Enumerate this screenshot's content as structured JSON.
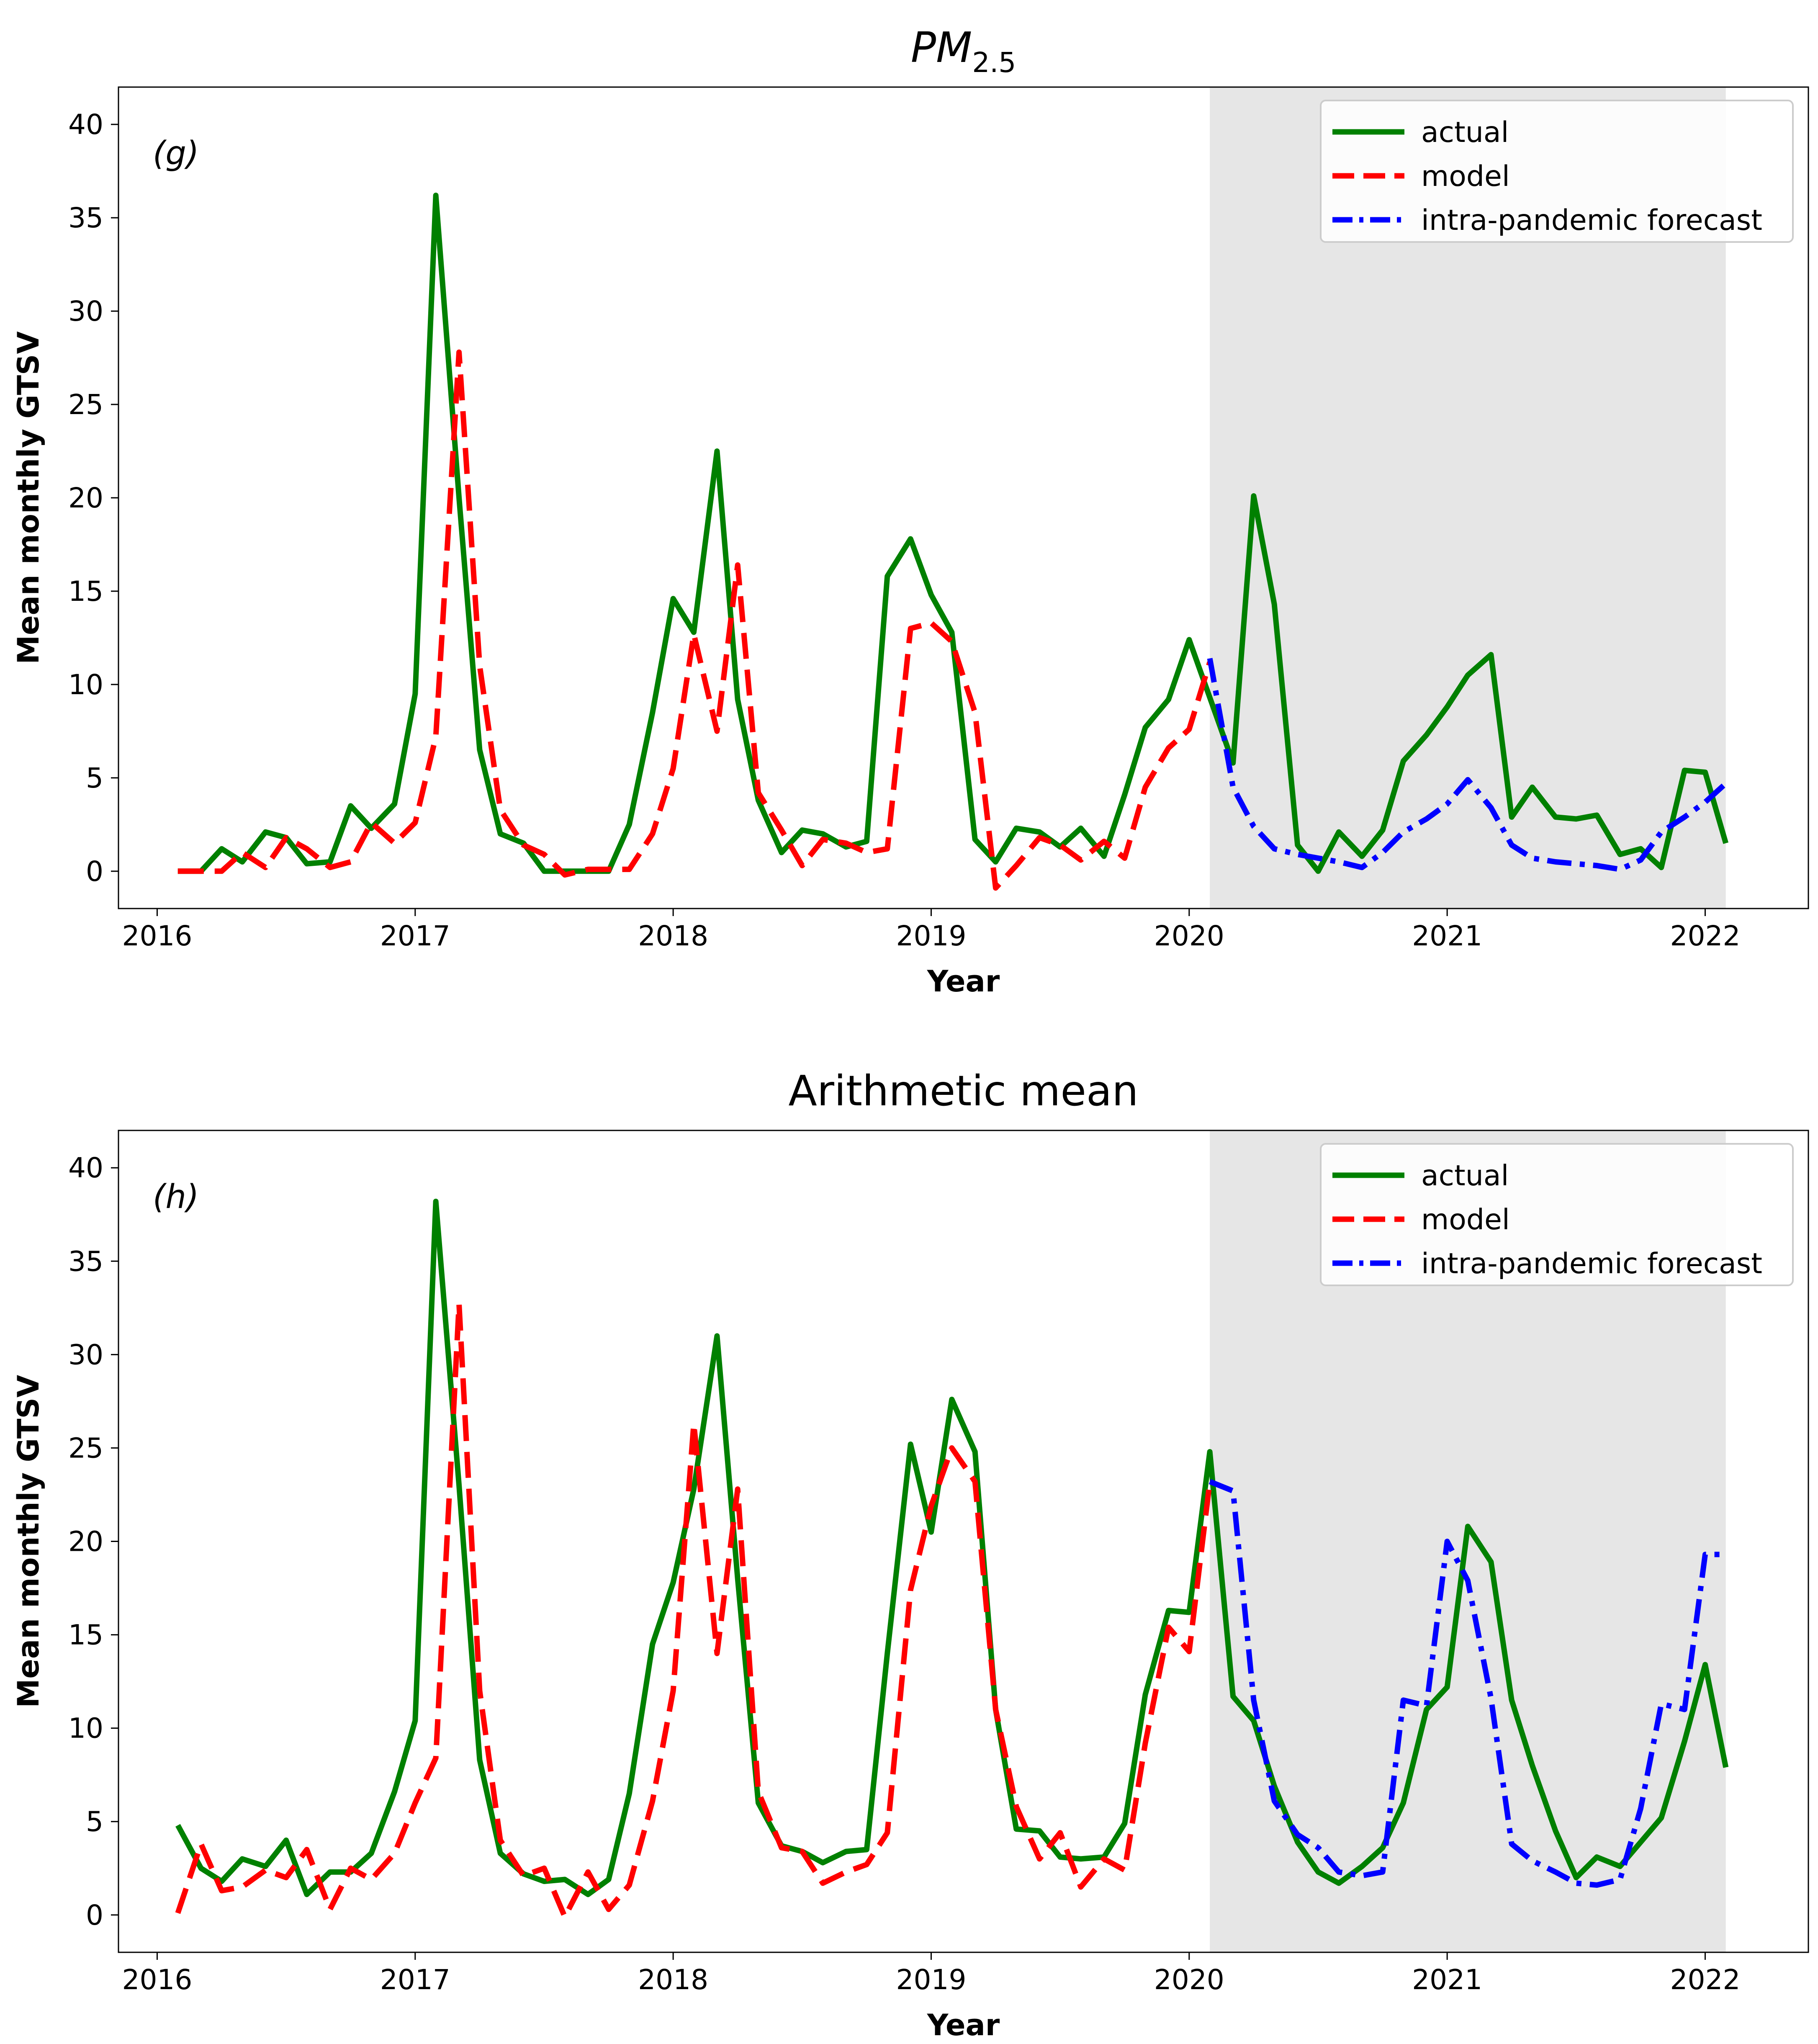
{
  "chart_data": [
    {
      "type": "line",
      "panel_label": "(g)",
      "title_main": "PM",
      "title_sub": "2.5",
      "xlabel": "Year",
      "ylabel": "Mean monthly GTSV",
      "xlim": [
        2015.85,
        2022.4
      ],
      "ylim": [
        -2,
        42
      ],
      "x_ticks": [
        2016,
        2017,
        2018,
        2019,
        2020,
        2021,
        2022
      ],
      "y_ticks": [
        0,
        5,
        10,
        15,
        20,
        25,
        30,
        35,
        40
      ],
      "shaded_region": [
        2020.08,
        2022.08
      ],
      "legend": [
        "actual",
        "model",
        "intra-pandemic forecast"
      ],
      "series": [
        {
          "name": "actual",
          "color": "#008000",
          "style": "solid",
          "x": [
            2016.08,
            2016.17,
            2016.25,
            2016.33,
            2016.42,
            2016.5,
            2016.58,
            2016.67,
            2016.75,
            2016.83,
            2016.92,
            2017.0,
            2017.08,
            2017.17,
            2017.25,
            2017.33,
            2017.42,
            2017.5,
            2017.58,
            2017.67,
            2017.75,
            2017.83,
            2017.92,
            2018.0,
            2018.08,
            2018.17,
            2018.25,
            2018.33,
            2018.42,
            2018.5,
            2018.58,
            2018.67,
            2018.75,
            2018.83,
            2018.92,
            2019.0,
            2019.08,
            2019.17,
            2019.25,
            2019.33,
            2019.42,
            2019.5,
            2019.58,
            2019.67,
            2019.75,
            2019.83,
            2019.92,
            2020.0,
            2020.08,
            2020.17,
            2020.25,
            2020.33,
            2020.42,
            2020.5,
            2020.58,
            2020.67,
            2020.75,
            2020.83,
            2020.92,
            2021.0,
            2021.08,
            2021.17,
            2021.25,
            2021.33,
            2021.42,
            2021.5,
            2021.58,
            2021.67,
            2021.75,
            2021.83,
            2021.92,
            2022.0,
            2022.08
          ],
          "y": [
            0,
            0,
            1.2,
            0.5,
            2.1,
            1.8,
            0.4,
            0.5,
            3.5,
            2.3,
            3.6,
            9.5,
            36.2,
            20.0,
            6.5,
            2.0,
            1.5,
            0.0,
            0.0,
            0.0,
            0.0,
            2.5,
            8.5,
            14.6,
            12.8,
            22.5,
            9.2,
            3.8,
            1.0,
            2.2,
            2.0,
            1.3,
            1.6,
            15.8,
            17.8,
            14.8,
            12.8,
            1.7,
            0.5,
            2.3,
            2.1,
            1.3,
            2.3,
            0.8,
            4.1,
            7.7,
            9.2,
            12.4,
            9.3,
            5.8,
            20.1,
            14.3,
            1.4,
            0.0,
            2.1,
            0.8,
            2.2,
            5.9,
            7.3,
            8.8,
            10.5,
            11.6,
            2.9,
            4.5,
            2.9,
            2.8,
            3.0,
            0.9,
            1.2,
            0.2,
            5.4,
            5.3,
            1.5
          ]
        },
        {
          "name": "model",
          "color": "#ff0000",
          "style": "dashed",
          "x": [
            2016.08,
            2016.17,
            2016.25,
            2016.33,
            2016.42,
            2016.5,
            2016.58,
            2016.67,
            2016.75,
            2016.83,
            2016.92,
            2017.0,
            2017.08,
            2017.17,
            2017.25,
            2017.33,
            2017.42,
            2017.5,
            2017.58,
            2017.67,
            2017.75,
            2017.83,
            2017.92,
            2018.0,
            2018.08,
            2018.17,
            2018.25,
            2018.33,
            2018.42,
            2018.5,
            2018.58,
            2018.67,
            2018.75,
            2018.83,
            2018.92,
            2019.0,
            2019.08,
            2019.17,
            2019.25,
            2019.33,
            2019.42,
            2019.5,
            2019.58,
            2019.67,
            2019.75,
            2019.83,
            2019.92,
            2020.0,
            2020.08
          ],
          "y": [
            0,
            0,
            0,
            1.0,
            0.2,
            1.8,
            1.2,
            0.2,
            0.5,
            2.6,
            1.5,
            2.6,
            7.2,
            27.8,
            11.0,
            3.3,
            1.4,
            0.9,
            -0.2,
            0.1,
            0.1,
            0.1,
            2.0,
            5.5,
            12.7,
            7.5,
            16.4,
            4.2,
            2.2,
            0.3,
            1.7,
            1.5,
            1.0,
            1.2,
            13.0,
            13.3,
            12.3,
            8.5,
            -0.9,
            0.3,
            1.8,
            1.4,
            0.6,
            1.6,
            0.7,
            4.5,
            6.6,
            7.6,
            11.2
          ]
        },
        {
          "name": "intra-pandemic forecast",
          "color": "#0000ff",
          "style": "dashdot",
          "x": [
            2020.08,
            2020.17,
            2020.25,
            2020.33,
            2020.42,
            2020.5,
            2020.58,
            2020.67,
            2020.75,
            2020.83,
            2020.92,
            2021.0,
            2021.08,
            2021.17,
            2021.25,
            2021.33,
            2021.42,
            2021.5,
            2021.58,
            2021.67,
            2021.75,
            2021.83,
            2021.92,
            2022.0,
            2022.08
          ],
          "y": [
            11.4,
            4.5,
            2.4,
            1.2,
            0.9,
            0.7,
            0.5,
            0.2,
            1.0,
            2.1,
            2.8,
            3.6,
            4.9,
            3.4,
            1.4,
            0.7,
            0.5,
            0.4,
            0.3,
            0.1,
            0.6,
            2.1,
            2.9,
            3.7,
            4.7
          ]
        }
      ]
    },
    {
      "type": "line",
      "panel_label": "(h)",
      "title_main": "Arithmetic mean",
      "title_sub": "",
      "xlabel": "Year",
      "ylabel": "Mean monthly GTSV",
      "xlim": [
        2015.85,
        2022.4
      ],
      "ylim": [
        -2,
        42
      ],
      "x_ticks": [
        2016,
        2017,
        2018,
        2019,
        2020,
        2021,
        2022
      ],
      "y_ticks": [
        0,
        5,
        10,
        15,
        20,
        25,
        30,
        35,
        40
      ],
      "shaded_region": [
        2020.08,
        2022.08
      ],
      "legend": [
        "actual",
        "model",
        "intra-pandemic forecast"
      ],
      "series": [
        {
          "name": "actual",
          "color": "#008000",
          "style": "solid",
          "x": [
            2016.08,
            2016.17,
            2016.25,
            2016.33,
            2016.42,
            2016.5,
            2016.58,
            2016.67,
            2016.75,
            2016.83,
            2016.92,
            2017.0,
            2017.08,
            2017.17,
            2017.25,
            2017.33,
            2017.42,
            2017.5,
            2017.58,
            2017.67,
            2017.75,
            2017.83,
            2017.92,
            2018.0,
            2018.08,
            2018.17,
            2018.25,
            2018.33,
            2018.42,
            2018.5,
            2018.58,
            2018.67,
            2018.75,
            2018.83,
            2018.92,
            2019.0,
            2019.08,
            2019.17,
            2019.25,
            2019.33,
            2019.42,
            2019.5,
            2019.58,
            2019.67,
            2019.75,
            2019.83,
            2019.92,
            2020.0,
            2020.08,
            2020.17,
            2020.25,
            2020.33,
            2020.42,
            2020.5,
            2020.58,
            2020.67,
            2020.75,
            2020.83,
            2020.92,
            2021.0,
            2021.08,
            2021.17,
            2021.25,
            2021.33,
            2021.42,
            2021.5,
            2021.58,
            2021.67,
            2021.75,
            2021.83,
            2021.92,
            2022.0,
            2022.08
          ],
          "y": [
            4.8,
            2.5,
            1.8,
            3.0,
            2.6,
            4.0,
            1.1,
            2.3,
            2.3,
            3.3,
            6.6,
            10.4,
            38.2,
            23.0,
            8.3,
            3.3,
            2.2,
            1.8,
            1.9,
            1.1,
            1.9,
            6.5,
            14.5,
            17.8,
            22.8,
            31.0,
            18.0,
            6.0,
            3.7,
            3.4,
            2.8,
            3.4,
            3.5,
            14.0,
            25.2,
            20.5,
            27.6,
            24.8,
            11.0,
            4.6,
            4.5,
            3.1,
            3.0,
            3.1,
            4.9,
            11.8,
            16.3,
            16.2,
            24.8,
            11.7,
            10.4,
            6.9,
            3.9,
            2.3,
            1.7,
            2.6,
            3.6,
            6.0,
            11.0,
            12.2,
            20.8,
            18.9,
            11.5,
            8.0,
            4.5,
            2.0,
            3.1,
            2.6,
            3.9,
            5.2,
            9.3,
            13.4,
            7.9
          ]
        },
        {
          "name": "model",
          "color": "#ff0000",
          "style": "dashed",
          "x": [
            2016.08,
            2016.17,
            2016.25,
            2016.33,
            2016.42,
            2016.5,
            2016.58,
            2016.67,
            2016.75,
            2016.83,
            2016.92,
            2017.0,
            2017.08,
            2017.17,
            2017.25,
            2017.33,
            2017.42,
            2017.5,
            2017.58,
            2017.67,
            2017.75,
            2017.83,
            2017.92,
            2018.0,
            2018.08,
            2018.17,
            2018.25,
            2018.33,
            2018.42,
            2018.5,
            2018.58,
            2018.67,
            2018.75,
            2018.83,
            2018.92,
            2019.0,
            2019.08,
            2019.17,
            2019.25,
            2019.33,
            2019.42,
            2019.5,
            2019.58,
            2019.67,
            2019.75,
            2019.83,
            2019.92,
            2020.0,
            2020.08
          ],
          "y": [
            0.1,
            3.8,
            1.3,
            1.5,
            2.4,
            2.0,
            3.5,
            0.3,
            2.5,
            1.9,
            3.3,
            6.0,
            8.4,
            32.7,
            12.0,
            4.0,
            2.1,
            2.5,
            -0.1,
            2.3,
            0.3,
            1.6,
            6.1,
            12.0,
            26.3,
            14.0,
            22.8,
            6.6,
            3.6,
            3.4,
            1.7,
            2.3,
            2.7,
            4.4,
            17.4,
            21.9,
            25.0,
            23.2,
            11.0,
            5.8,
            3.0,
            4.4,
            1.5,
            3.0,
            2.4,
            9.2,
            15.4,
            14.1,
            23.2
          ]
        },
        {
          "name": "intra-pandemic forecast",
          "color": "#0000ff",
          "style": "dashdot",
          "x": [
            2020.08,
            2020.17,
            2020.25,
            2020.33,
            2020.42,
            2020.5,
            2020.58,
            2020.67,
            2020.75,
            2020.83,
            2020.92,
            2021.0,
            2021.08,
            2021.17,
            2021.25,
            2021.33,
            2021.42,
            2021.5,
            2021.58,
            2021.67,
            2021.75,
            2021.83,
            2021.92,
            2022.0,
            2022.08
          ],
          "y": [
            23.2,
            22.7,
            11.5,
            6.1,
            4.3,
            3.6,
            2.3,
            2.1,
            2.3,
            11.5,
            11.2,
            20.0,
            17.9,
            11.6,
            3.8,
            2.9,
            2.3,
            1.7,
            1.6,
            1.9,
            5.7,
            11.3,
            11.0,
            19.3,
            19.3
          ]
        }
      ]
    }
  ]
}
